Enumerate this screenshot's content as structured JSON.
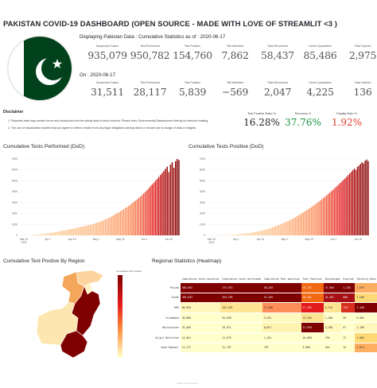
{
  "title": "PAKISTAN COVID-19 DASHBOARD (OPEN SOURCE - MADE WITH LOVE OF STREAMLIT <3 )",
  "cumulative_heading": "Displaying Pakistan Data : Cumulative Statistics as of : 2020-06-17",
  "daily_heading": "On : 2020-06-17",
  "cumulative_metrics": [
    {
      "label": "Suspected Cases",
      "value": "935,079"
    },
    {
      "label": "Test Performed",
      "value": "950,782"
    },
    {
      "label": "Test Positive",
      "value": "154,760"
    },
    {
      "label": "Still Admitted",
      "value": "7,862"
    },
    {
      "label": "Total Recovered",
      "value": "58,437"
    },
    {
      "label": "Home Quarantine",
      "value": "85,486"
    },
    {
      "label": "Total Expired",
      "value": "2,975"
    }
  ],
  "daily_metrics": [
    {
      "label": "Suspected Cases",
      "value": "31,511"
    },
    {
      "label": "Test Performed",
      "value": "28,117"
    },
    {
      "label": "Test Positive",
      "value": "5,839"
    },
    {
      "label": "Still Admitted",
      "value": "−569"
    },
    {
      "label": "Total Recovered",
      "value": "2,047"
    },
    {
      "label": "Home Quarantine",
      "value": "4,225"
    },
    {
      "label": "Total Expired",
      "value": "136"
    }
  ],
  "disclaimer": {
    "title": "Disclaimer",
    "items": [
      "1.  Reported data may contain errors and omissions from the actual data in facts involved. Please refer Governmental Datasources directly for decision making.",
      "2.  The use of visualization implies that you agree to relieve creator from any legal obligations arising direct or remote due to usage of data or insights."
    ]
  },
  "ratios": [
    {
      "label": "Test Positive Ratio %",
      "value": "16.28%",
      "color": "#262730"
    },
    {
      "label": "Recovery %",
      "value": "37.76%",
      "color": "#1a9641"
    },
    {
      "label": "Fatality Rate %",
      "value": "1.92%",
      "color": "#e0412f"
    }
  ],
  "sections": {
    "tests_performed": "Cumulative Tests Performed (DoD)",
    "tests_positive": "Cumulative Tests Positive (DoD)",
    "by_region": "Cumulative Test Postive By Region",
    "regional_stats": "Regional Statistics (Heatmap)"
  },
  "colorbar_label": "Cumulative Test positive",
  "chart_data": [
    {
      "type": "bar",
      "title": "Cumulative Tests Performed (DoD)",
      "xlabel": "",
      "ylabel": "",
      "ylim": [
        0,
        7000
      ],
      "yticks": [
        "0",
        "1000",
        "2000",
        "3000",
        "4000",
        "5000",
        "6000",
        "7000"
      ],
      "xticks": [
        "Mar 15\n2020",
        "Apr 1",
        "Apr 15",
        "May 1",
        "May 15",
        "Jun 1",
        "Jun 15"
      ],
      "values": [
        3,
        5,
        8,
        10,
        14,
        18,
        22,
        30,
        40,
        55,
        60,
        75,
        90,
        110,
        130,
        150,
        170,
        190,
        220,
        240,
        260,
        290,
        320,
        350,
        380,
        420,
        440,
        470,
        500,
        540,
        560,
        600,
        620,
        650,
        700,
        720,
        760,
        800,
        830,
        870,
        900,
        940,
        980,
        1020,
        1060,
        1100,
        1150,
        1200,
        1260,
        1320,
        1380,
        1450,
        1520,
        1600,
        1680,
        1760,
        1850,
        1940,
        2020,
        2100,
        2200,
        2300,
        2400,
        2500,
        2600,
        2700,
        2820,
        2940,
        3060,
        3180,
        3300,
        3420,
        3560,
        3700,
        3860,
        4000,
        4150,
        4320,
        4500,
        4660,
        4820,
        5000,
        5180,
        5360,
        5540,
        5720,
        5900,
        6100,
        6300,
        5800,
        6500,
        6700,
        6200,
        6800,
        7000,
        6900
      ]
    },
    {
      "type": "bar",
      "title": "Cumulative Tests Positive (DoD)",
      "xlabel": "",
      "ylabel": "",
      "ylim": [
        0,
        7000
      ],
      "yticks": [
        "0",
        "1000",
        "2000",
        "3000",
        "4000",
        "5000",
        "6000",
        "7000"
      ],
      "xticks": [
        "Mar 15\n2020",
        "Apr 1",
        "Apr 15",
        "May 1",
        "May 15",
        "Jun 1",
        "Jun 15"
      ],
      "values": [
        2,
        3,
        4,
        5,
        6,
        8,
        10,
        12,
        15,
        18,
        22,
        26,
        30,
        36,
        42,
        50,
        58,
        66,
        76,
        86,
        98,
        110,
        124,
        140,
        156,
        174,
        192,
        212,
        234,
        256,
        280,
        306,
        334,
        364,
        396,
        430,
        466,
        504,
        544,
        586,
        630,
        676,
        724,
        774,
        826,
        880,
        936,
        994,
        1054,
        1116,
        1180,
        1246,
        1314,
        1384,
        1456,
        1530,
        1606,
        1684,
        1764,
        1846,
        1930,
        2016,
        2104,
        2194,
        2286,
        2380,
        2476,
        2574,
        2674,
        2776,
        2880,
        2986,
        3094,
        3204,
        3316,
        3430,
        3546,
        3664,
        3784,
        3906,
        4030,
        4156,
        4284,
        4414,
        4546,
        4680,
        4816,
        4954,
        5094,
        5236,
        5380,
        5526,
        5674,
        5824,
        5976,
        6130,
        6000,
        6280,
        6400,
        6550,
        6700,
        6600,
        6850,
        6950,
        6800
      ]
    },
    {
      "type": "table",
      "title": "Regional Statistics (Heatmap)",
      "columns": [
        "Cumulative tests positive",
        "Cumulative tests performed",
        "Cumulative Test positive",
        "Test_Positive",
        "Discharged",
        "Expired",
        "Fatality_Rate"
      ],
      "rows": [
        {
          "region": "Punjab",
          "values": [
            "305,893",
            "375,923",
            "58,330",
            "16.133",
            "37,094",
            "1,338",
            "1.979"
          ],
          "colors": [
            "#7f0000",
            "#7f0000",
            "#7f0000",
            "#f16913",
            "#7f0000",
            "#7f0000",
            "#fdae61"
          ]
        },
        {
          "region": "Sindh",
          "values": [
            "353,633",
            "353,295",
            "57,449",
            "16.261",
            "24,381",
            "888",
            "1.546"
          ],
          "colors": [
            "#7f0000",
            "#7f0000",
            "#7f0000",
            "#f16913",
            "#a50f15",
            "#a50f15",
            "#fed976"
          ]
        },
        {
          "region": "KPK",
          "values": [
            "84,994",
            "107,287",
            "17,450",
            "17.493",
            "5,174",
            "729",
            "3.448"
          ],
          "colors": [
            "#fff7bc",
            "#fee391",
            "#fc8d59",
            "#e31a1c",
            "#fee391",
            "#d7301f",
            "#7f0000"
          ]
        },
        {
          "region": "Islamabad",
          "values": [
            "36,800",
            "55,050",
            "5,191",
            "13.444",
            "1,438",
            "59",
            "0.901"
          ],
          "colors": [
            "#ffffcc",
            "#ffffcc",
            "#fff7bc",
            "#fee391",
            "#ffffcc",
            "#ffffcc",
            "#ffffcc"
          ]
        },
        {
          "region": "Balochistan",
          "values": [
            "31,056",
            "33,971",
            "8,027",
            "22.638",
            "3,158",
            "67",
            "1.150"
          ],
          "colors": [
            "#ffffcc",
            "#ffffcc",
            "#fff3b0",
            "#7f0000",
            "#fff7bc",
            "#ffffcc",
            "#fff7bc"
          ]
        },
        {
          "region": "Gilgit Baltistan",
          "values": [
            "14,561",
            "11,979",
            "1,164",
            "10.660",
            "730",
            "17",
            "1.904"
          ],
          "colors": [
            "#ffffcc",
            "#ffffcc",
            "#ffffcc",
            "#ffffcc",
            "#ffffcc",
            "#ffffcc",
            "#fed976"
          ]
        },
        {
          "region": "Azad Kashmir",
          "values": [
            "11,727",
            "12,797",
            "723",
            "5.896",
            "424",
            "15",
            "2.074"
          ],
          "colors": [
            "#ffffcc",
            "#ffffcc",
            "#ffffcc",
            "#ffffcc",
            "#ffffcc",
            "#ffffcc",
            "#fdae61"
          ]
        }
      ]
    }
  ],
  "footer": "Made with Streamlit"
}
